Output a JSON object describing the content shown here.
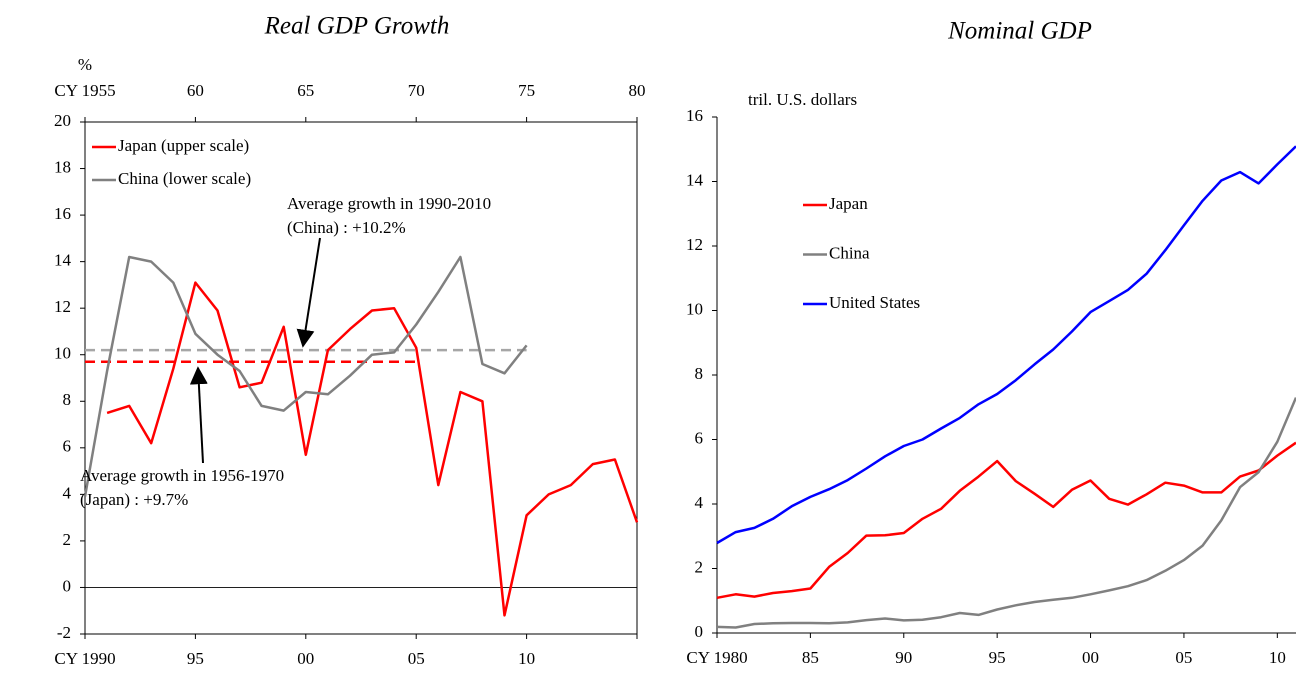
{
  "chart_data": [
    {
      "type": "line",
      "title": "Real GDP Growth",
      "y_label": "%",
      "xlim": [
        1990,
        2015
      ],
      "xticks": [
        {
          "value": 1990,
          "label": "CY 1990"
        },
        {
          "value": 1995,
          "label": "95"
        },
        {
          "value": 2000,
          "label": "00"
        },
        {
          "value": 2005,
          "label": "05"
        },
        {
          "value": 2010,
          "label": "10"
        },
        {
          "value": 2015,
          "label": ""
        }
      ],
      "x2lim": [
        1955,
        1980
      ],
      "x2ticks": [
        {
          "value": 1955,
          "label": "CY 1955"
        },
        {
          "value": 1960,
          "label": "60"
        },
        {
          "value": 1965,
          "label": "65"
        },
        {
          "value": 1970,
          "label": "70"
        },
        {
          "value": 1975,
          "label": "75"
        },
        {
          "value": 1980,
          "label": "80"
        }
      ],
      "ylim": [
        -2,
        20
      ],
      "yticks": [
        -2,
        0,
        2,
        4,
        6,
        8,
        10,
        12,
        14,
        16,
        18,
        20
      ],
      "grid": false,
      "legend": "upper left",
      "series": [
        {
          "name": "Japan (upper scale)",
          "color": "#ff0000",
          "axis": "x2",
          "x": [
            1956,
            1957,
            1958,
            1959,
            1960,
            1961,
            1962,
            1963,
            1964,
            1965,
            1966,
            1967,
            1968,
            1969,
            1970,
            1971,
            1972,
            1973,
            1974,
            1975,
            1976,
            1977,
            1978,
            1979,
            1980
          ],
          "values": [
            7.5,
            7.8,
            6.2,
            9.4,
            13.1,
            11.9,
            8.6,
            8.8,
            11.2,
            5.7,
            10.2,
            11.1,
            11.9,
            12.0,
            10.3,
            4.4,
            8.4,
            8.0,
            -1.2,
            3.1,
            4.0,
            4.4,
            5.3,
            5.5,
            2.8
          ]
        },
        {
          "name": "China (lower scale)",
          "color": "#808080",
          "x": [
            1990,
            1991,
            1992,
            1993,
            1994,
            1995,
            1996,
            1997,
            1998,
            1999,
            2000,
            2001,
            2002,
            2003,
            2004,
            2005,
            2006,
            2007,
            2008,
            2009,
            2010
          ],
          "values": [
            3.9,
            9.3,
            14.2,
            14.0,
            13.1,
            10.9,
            10.0,
            9.3,
            7.8,
            7.6,
            8.4,
            8.3,
            9.1,
            10.0,
            10.1,
            11.3,
            12.7,
            14.2,
            9.6,
            9.2,
            10.4
          ]
        }
      ],
      "reference_lines": [
        {
          "color": "#ff0000",
          "axis": "x2",
          "x": [
            1955,
            1970
          ],
          "value": 9.7
        },
        {
          "color": "#a6a6a6",
          "x": [
            1990,
            2010
          ],
          "value": 10.2
        }
      ],
      "annotations": [
        {
          "lines": [
            "Average growth in 1990-2010",
            "(China) : +10.2%"
          ]
        },
        {
          "lines": [
            "Average growth in 1956-1970",
            "(Japan) : +9.7%"
          ]
        }
      ]
    },
    {
      "type": "line",
      "title": "Nominal GDP",
      "y_label": "tril. U.S. dollars",
      "xlim": [
        1980,
        2011
      ],
      "xticks": [
        {
          "value": 1980,
          "label": "CY 1980"
        },
        {
          "value": 1985,
          "label": "85"
        },
        {
          "value": 1990,
          "label": "90"
        },
        {
          "value": 1995,
          "label": "95"
        },
        {
          "value": 2000,
          "label": "00"
        },
        {
          "value": 2005,
          "label": "05"
        },
        {
          "value": 2010,
          "label": "10"
        }
      ],
      "ylim": [
        0,
        16
      ],
      "yticks": [
        0,
        2,
        4,
        6,
        8,
        10,
        12,
        14,
        16
      ],
      "grid": false,
      "legend": "center left",
      "series": [
        {
          "name": "Japan",
          "color": "#ff0000",
          "x": [
            1980,
            1981,
            1982,
            1983,
            1984,
            1985,
            1986,
            1987,
            1988,
            1989,
            1990,
            1991,
            1992,
            1993,
            1994,
            1995,
            1996,
            1997,
            1998,
            1999,
            2000,
            2001,
            2002,
            2003,
            2004,
            2005,
            2006,
            2007,
            2008,
            2009,
            2010,
            2011
          ],
          "values": [
            1.09,
            1.2,
            1.13,
            1.24,
            1.3,
            1.38,
            2.05,
            2.48,
            3.02,
            3.03,
            3.1,
            3.54,
            3.85,
            4.41,
            4.85,
            5.33,
            4.71,
            4.32,
            3.91,
            4.44,
            4.73,
            4.16,
            3.98,
            4.3,
            4.66,
            4.57,
            4.36,
            4.36,
            4.85,
            5.04,
            5.5,
            5.9
          ]
        },
        {
          "name": "China",
          "color": "#808080",
          "x": [
            1980,
            1981,
            1982,
            1983,
            1984,
            1985,
            1986,
            1987,
            1988,
            1989,
            1990,
            1991,
            1992,
            1993,
            1994,
            1995,
            1996,
            1997,
            1998,
            1999,
            2000,
            2001,
            2002,
            2003,
            2004,
            2005,
            2006,
            2007,
            2008,
            2009,
            2010,
            2011
          ],
          "values": [
            0.19,
            0.17,
            0.28,
            0.3,
            0.31,
            0.31,
            0.3,
            0.33,
            0.4,
            0.45,
            0.39,
            0.41,
            0.49,
            0.62,
            0.56,
            0.73,
            0.86,
            0.96,
            1.03,
            1.09,
            1.2,
            1.32,
            1.45,
            1.64,
            1.93,
            2.26,
            2.71,
            3.49,
            4.52,
            4.99,
            5.93,
            7.3
          ]
        },
        {
          "name": "United States",
          "color": "#0000ff",
          "x": [
            1980,
            1981,
            1982,
            1983,
            1984,
            1985,
            1986,
            1987,
            1988,
            1989,
            1990,
            1991,
            1992,
            1993,
            1994,
            1995,
            1996,
            1997,
            1998,
            1999,
            2000,
            2001,
            2002,
            2003,
            2004,
            2005,
            2006,
            2007,
            2008,
            2009,
            2010,
            2011
          ],
          "values": [
            2.79,
            3.13,
            3.26,
            3.54,
            3.93,
            4.22,
            4.46,
            4.74,
            5.1,
            5.48,
            5.8,
            6.0,
            6.34,
            6.67,
            7.09,
            7.41,
            7.84,
            8.33,
            8.79,
            9.35,
            9.95,
            10.29,
            10.64,
            11.14,
            11.87,
            12.64,
            13.4,
            14.03,
            14.29,
            13.94,
            14.53,
            15.09
          ]
        }
      ]
    }
  ]
}
